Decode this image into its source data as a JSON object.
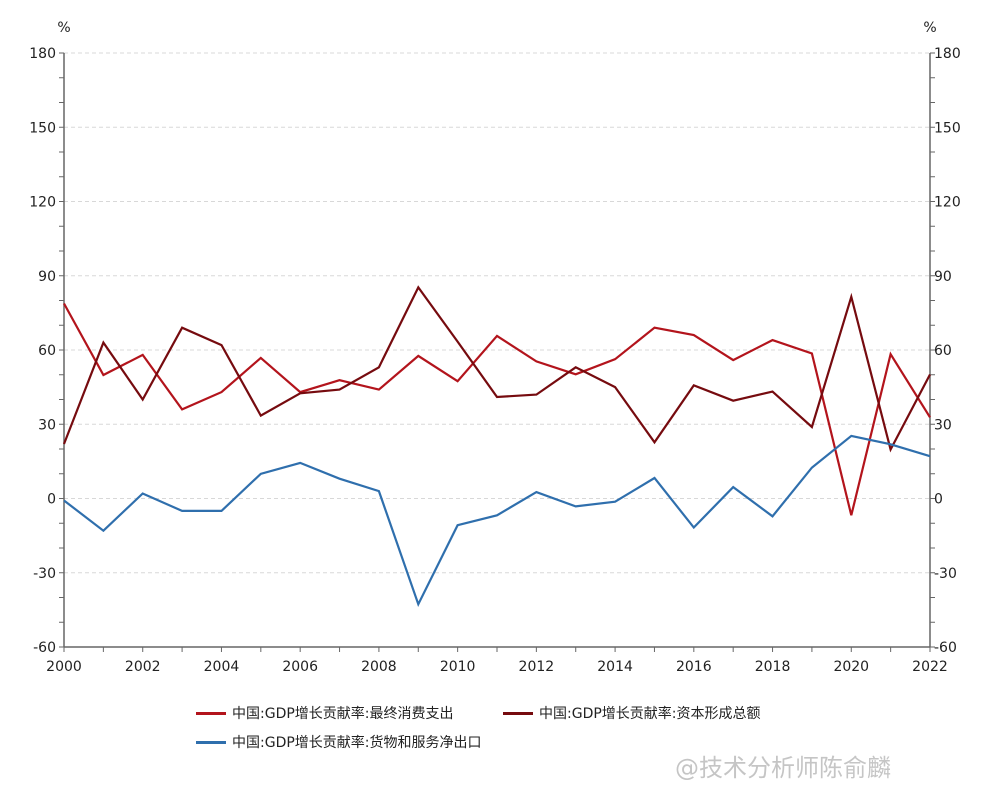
{
  "chart_data": {
    "type": "line",
    "title": "",
    "xlabel": "",
    "ylabel_left": "%",
    "ylabel_right": "%",
    "ylim": [
      -60,
      180
    ],
    "yticks": [
      -60,
      -30,
      0,
      30,
      60,
      90,
      120,
      150,
      180
    ],
    "xlim": [
      2000,
      2022
    ],
    "xticks": [
      2000,
      2002,
      2004,
      2006,
      2008,
      2010,
      2012,
      2014,
      2016,
      2018,
      2020,
      2022
    ],
    "grid": "horizontal dashed",
    "legend_placement": "bottom",
    "x": [
      2000,
      2001,
      2002,
      2003,
      2004,
      2005,
      2006,
      2007,
      2008,
      2009,
      2010,
      2011,
      2012,
      2013,
      2014,
      2015,
      2016,
      2017,
      2018,
      2019,
      2020,
      2021,
      2022
    ],
    "series": [
      {
        "name": "中国:GDP增长贡献率:最终消费支出",
        "color": "#b3141c",
        "values": [
          78.8,
          49.9,
          58,
          36,
          43,
          56.8,
          43,
          47.8,
          44,
          57.6,
          47.4,
          65.7,
          55.4,
          50.2,
          56.3,
          69,
          66,
          55.9,
          64,
          58.6,
          -6.8,
          58.3,
          32.8
        ]
      },
      {
        "name": "中国:GDP增长贡献率:资本形成总额",
        "color": "#760b0f",
        "values": [
          22,
          63,
          40,
          69,
          62,
          33.5,
          42.5,
          44,
          53,
          85.3,
          63.4,
          41,
          42,
          53,
          45,
          22.7,
          45.7,
          39.5,
          43.2,
          28.9,
          81.5,
          19.8,
          50.1
        ]
      },
      {
        "name": "中国:GDP增长贡献率:货物和服务净出口",
        "color": "#2f6fad",
        "values": [
          -0.8,
          -13,
          2,
          -5,
          -5,
          10,
          14.4,
          8,
          3,
          -42.7,
          -10.8,
          -6.8,
          2.6,
          -3.2,
          -1.3,
          8.3,
          -11.7,
          4.6,
          -7.2,
          12.5,
          25.3,
          21.9,
          17.1
        ]
      }
    ]
  },
  "watermark": "@技术分析师陈俞麟"
}
